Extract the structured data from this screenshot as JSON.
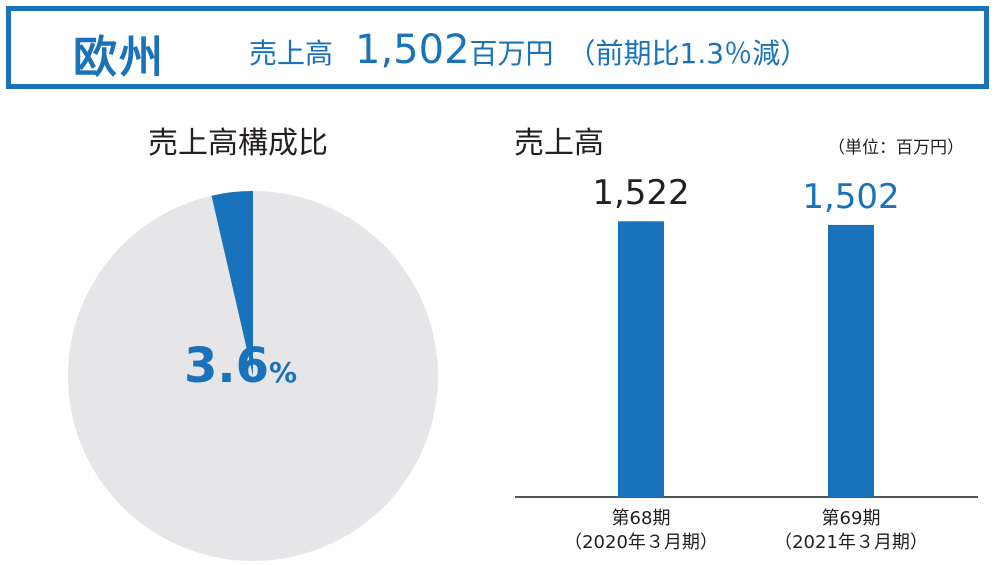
{
  "header": {
    "region": "欧州",
    "sales_label": "売上高",
    "sales_value": "1,502",
    "sales_unit": "百万円",
    "sales_change": "（前期比1.3％減）"
  },
  "pie": {
    "title": "売上高構成比",
    "share_number": "3.6",
    "share_unit": "%"
  },
  "bars": {
    "title": "売上高",
    "unit_note": "（単位：百万円）"
  },
  "colors": {
    "accent": "#1a73ba",
    "pie_background": "#e6e6e8",
    "axis": "#555555",
    "prev_value_text": "#231f20"
  },
  "chart_data": [
    {
      "type": "pie",
      "title": "売上高構成比",
      "slices": [
        {
          "label": "欧州",
          "value": 3.6
        },
        {
          "label": "",
          "value": 96.4
        }
      ]
    },
    {
      "type": "bar",
      "title": "売上高",
      "unit": "（単位：百万円）",
      "categories": [
        {
          "line1": "第68期",
          "line2": "（2020年３月期）"
        },
        {
          "line1": "第69期",
          "line2": "（2021年３月期）"
        }
      ],
      "values": [
        1522,
        1502
      ],
      "value_labels": [
        "1,522",
        "1,502"
      ]
    }
  ]
}
